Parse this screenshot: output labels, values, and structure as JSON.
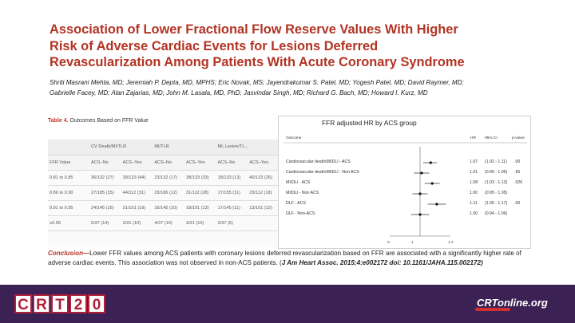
{
  "title_lines": [
    "Association of Lower Fractional Flow Reserve Values With Higher",
    "Risk of Adverse Cardiac Events for Lesions Deferred",
    "Revascularization Among Patients With Acute Coronary Syndrome"
  ],
  "author_lines": [
    "Shriti Masrani Mehta, MD; Jeremiah P. Depta, MD, MPHS; Eric Novak, MS; Jayendrakumar S. Patel, MD; Yogesh Patel, MD; David Raymer, MD;",
    "Gabrielle Facey, MD; Alan Zajarias, MD; John M. Lasala, MD, PhD; Jasvindar Singh, MD; Richard G. Bach, MD; Howard I. Kurz, MD"
  ],
  "table": {
    "caption_label": "Table 4.",
    "caption_text": "Outcomes Based on FFR Value",
    "group_headers": [
      "",
      "CV Death/MI/TLR",
      "MI/TLR",
      "MI, Lesion/TL..."
    ],
    "sub_headers": [
      "FFR Value",
      "ACS–No",
      "ACS–Yes",
      "ACS–No",
      "ACS–Yes",
      "ACS–No",
      "ACS–Yes"
    ],
    "rows": [
      [
        "0.81 to 0.85",
        "36/132 (27)",
        "39/133 (44)",
        "23/132 (17)",
        "38/133 (33)",
        "18/133 (13)",
        "40/133 (26)"
      ],
      [
        "0.86 to 0.90",
        "27/185 (15)",
        "44/112 (31)",
        "23/186 (12)",
        "31/112 (28)",
        "17/155 (11)",
        "23/112 (18)"
      ],
      [
        "0.91 to 0.95",
        "24/145 (16)",
        "21/101 (19)",
        "16/145 (10)",
        "18/101 (13)",
        "17/145 (11)",
        "13/101 (12)"
      ],
      [
        "≥0.96",
        "5/37 (14)",
        "3/21 (10)",
        "4/37 (10)",
        "3/21 (10)",
        "2/37 (5)",
        ""
      ]
    ]
  },
  "forest": {
    "title": "FFR adjusted HR by ACS group",
    "col_outcome": "Outcome",
    "col_hr": "HR",
    "col_ci": "95% CI",
    "col_p": "p-value",
    "rows": [
      {
        "label": "Cardiovascular death/MI/DLI - ACS",
        "hr": "1.07",
        "ci": "(1.02 - 1.11)",
        "p": ".00"
      },
      {
        "label": "Cardiovascular death/MI/DLI - Non ACS",
        "hr": "1.01",
        "ci": "(0.96 - 1.06)",
        "p": ".66"
      },
      {
        "label": "MI/DLI - ACS",
        "hr": "1.08",
        "ci": "(1.03 - 1.13)",
        "p": ".026"
      },
      {
        "label": "MI/DLI - Non ACS",
        "hr": "1.00",
        "ci": "(0.95 - 1.05)",
        "p": ""
      },
      {
        "label": "DLF - ACS",
        "hr": "1.11",
        "ci": "(1.05 - 1.17)",
        "p": ".00"
      },
      {
        "label": "DLF - Non-ACS",
        "hr": "1.00",
        "ci": "(0.94 - 1.06)",
        "p": ""
      }
    ],
    "hr_values": [
      1.07,
      1.01,
      1.08,
      1.0,
      1.11,
      1.0
    ],
    "ci_low": [
      1.02,
      0.96,
      1.03,
      0.95,
      1.05,
      0.94
    ],
    "ci_high": [
      1.11,
      1.06,
      1.13,
      1.05,
      1.17,
      1.06
    ],
    "axis_ticks": [
      ".8",
      "1",
      "1.2"
    ],
    "axis_range": [
      0.8,
      1.2
    ]
  },
  "conclusion": {
    "lead": "Conclusion—",
    "body": "Lower FFR values among ACS patients with coronary lesions deferred revascularization based on FFR are associated with a significantly higher rate of adverse cardiac events. This association was not observed in non-ACS patients. (",
    "citation": "J Am Heart Assoc. 2015;4:e002172 doi: 10.1161/JAHA.115.002172)"
  },
  "footer": {
    "left_logo_letters": [
      "C",
      "R",
      "T",
      "2",
      "0"
    ],
    "right_logo_text": "CRTonline.org",
    "bg_color": "#3c2155",
    "brand_red": "#b0203a"
  }
}
